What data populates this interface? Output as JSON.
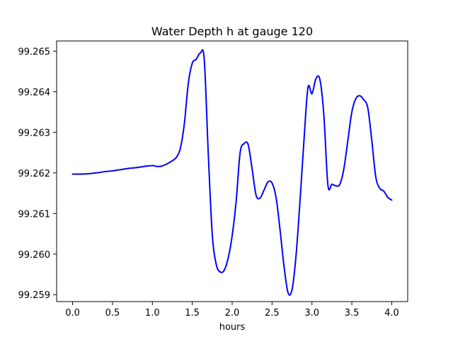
{
  "chart_data": {
    "type": "line",
    "title": "Water Depth h at gauge 120",
    "xlabel": "hours",
    "ylabel": "",
    "xlim": [
      -0.2,
      4.2
    ],
    "ylim": [
      99.25883,
      99.26525
    ],
    "xticks": [
      0.0,
      0.5,
      1.0,
      1.5,
      2.0,
      2.5,
      3.0,
      3.5,
      4.0
    ],
    "xtick_labels": [
      "0.0",
      "0.5",
      "1.0",
      "1.5",
      "2.0",
      "2.5",
      "3.0",
      "3.5",
      "4.0"
    ],
    "yticks": [
      99.259,
      99.26,
      99.261,
      99.262,
      99.263,
      99.264,
      99.265
    ],
    "ytick_labels": [
      "99.259",
      "99.260",
      "99.261",
      "99.262",
      "99.263",
      "99.264",
      "99.265"
    ],
    "grid": false,
    "series": [
      {
        "color": "#0000ff",
        "x": [
          0.0,
          0.1,
          0.2,
          0.3,
          0.4,
          0.5,
          0.6,
          0.7,
          0.8,
          0.9,
          1.0,
          1.05,
          1.1,
          1.15,
          1.2,
          1.25,
          1.3,
          1.35,
          1.4,
          1.45,
          1.5,
          1.55,
          1.6,
          1.65,
          1.7,
          1.75,
          1.8,
          1.85,
          1.9,
          1.95,
          2.0,
          2.05,
          2.1,
          2.15,
          2.2,
          2.25,
          2.3,
          2.35,
          2.4,
          2.45,
          2.5,
          2.55,
          2.6,
          2.65,
          2.7,
          2.75,
          2.8,
          2.85,
          2.9,
          2.95,
          3.0,
          3.05,
          3.1,
          3.15,
          3.2,
          3.25,
          3.3,
          3.35,
          3.4,
          3.45,
          3.5,
          3.55,
          3.6,
          3.65,
          3.7,
          3.75,
          3.8,
          3.85,
          3.9,
          3.95,
          4.0
        ],
        "y": [
          99.26197,
          99.26197,
          99.26198,
          99.262,
          99.26203,
          99.26205,
          99.26208,
          99.26211,
          99.26213,
          99.26216,
          99.26218,
          99.26216,
          99.26216,
          99.26219,
          99.26224,
          99.2623,
          99.26238,
          99.2626,
          99.2632,
          99.2642,
          99.2647,
          99.2648,
          99.26495,
          99.2648,
          99.2625,
          99.2605,
          99.25975,
          99.25956,
          99.2596,
          99.2599,
          99.26045,
          99.2613,
          99.2625,
          99.26272,
          99.2627,
          99.2621,
          99.26145,
          99.26138,
          99.26158,
          99.26178,
          99.26175,
          99.2614,
          99.2606,
          99.2597,
          99.25905,
          99.25912,
          99.25995,
          99.2613,
          99.2628,
          99.2641,
          99.26395,
          99.26432,
          99.2643,
          99.2634,
          99.2617,
          99.26172,
          99.26168,
          99.26172,
          99.2621,
          99.2628,
          99.2635,
          99.26383,
          99.2639,
          99.2638,
          99.2636,
          99.2628,
          99.2619,
          99.26162,
          99.26155,
          99.2614,
          99.26133
        ]
      }
    ]
  }
}
